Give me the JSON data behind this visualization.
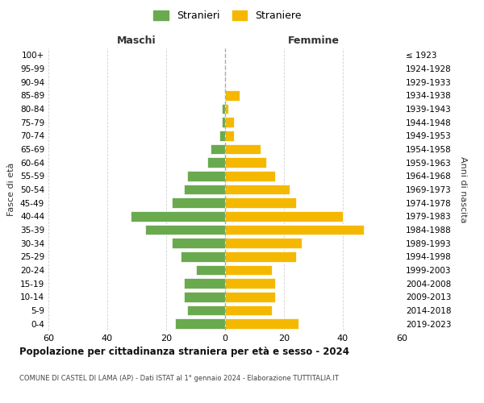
{
  "age_groups": [
    "100+",
    "95-99",
    "90-94",
    "85-89",
    "80-84",
    "75-79",
    "70-74",
    "65-69",
    "60-64",
    "55-59",
    "50-54",
    "45-49",
    "40-44",
    "35-39",
    "30-34",
    "25-29",
    "20-24",
    "15-19",
    "10-14",
    "5-9",
    "0-4"
  ],
  "birth_years": [
    "≤ 1923",
    "1924-1928",
    "1929-1933",
    "1934-1938",
    "1939-1943",
    "1944-1948",
    "1949-1953",
    "1954-1958",
    "1959-1963",
    "1964-1968",
    "1969-1973",
    "1974-1978",
    "1979-1983",
    "1984-1988",
    "1989-1993",
    "1994-1998",
    "1999-2003",
    "2004-2008",
    "2009-2013",
    "2014-2018",
    "2019-2023"
  ],
  "males": [
    0,
    0,
    0,
    0,
    1,
    1,
    2,
    5,
    6,
    13,
    14,
    18,
    32,
    27,
    18,
    15,
    10,
    14,
    14,
    13,
    17
  ],
  "females": [
    0,
    0,
    0,
    5,
    1,
    3,
    3,
    12,
    14,
    17,
    22,
    24,
    40,
    47,
    26,
    24,
    16,
    17,
    17,
    16,
    25
  ],
  "male_color": "#6aaa4f",
  "female_color": "#f5b800",
  "background_color": "#ffffff",
  "grid_color": "#cccccc",
  "title": "Popolazione per cittadinanza straniera per età e sesso - 2024",
  "subtitle": "COMUNE DI CASTEL DI LAMA (AP) - Dati ISTAT al 1° gennaio 2024 - Elaborazione TUTTITALIA.IT",
  "xlabel_left": "Maschi",
  "xlabel_right": "Femmine",
  "ylabel_left": "Fasce di età",
  "ylabel_right": "Anni di nascita",
  "legend_male": "Stranieri",
  "legend_female": "Straniere",
  "xlim": 60,
  "dashed_line_color": "#aaaaaa"
}
